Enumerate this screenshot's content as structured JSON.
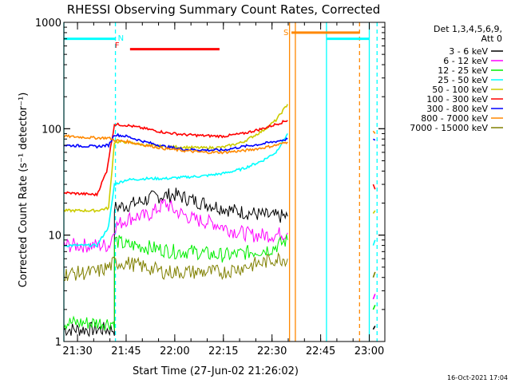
{
  "chart_data": {
    "type": "line",
    "title": "RHESSI Observing Summary Count Rates, Corrected",
    "xlabel": "Start Time (27-Jun-02 21:26:02)",
    "ylabel": "Corrected Count Rate (s⁻¹ detector⁻¹)",
    "yscale": "log",
    "ylim": [
      1,
      1000
    ],
    "xlim_minutes": [
      21.43,
      23.08
    ],
    "x_unit": "hours (UT, decimal)",
    "y_ticks": [
      {
        "value": 1,
        "label": "1"
      },
      {
        "value": 10,
        "label": "10"
      },
      {
        "value": 100,
        "label": "100"
      },
      {
        "value": 1000,
        "label": "1000"
      }
    ],
    "x_ticks": [
      {
        "value": 21.5,
        "label": "21:30"
      },
      {
        "value": 21.75,
        "label": "21:45"
      },
      {
        "value": 22.0,
        "label": "22:00"
      },
      {
        "value": 22.25,
        "label": "22:15"
      },
      {
        "value": 22.5,
        "label": "22:30"
      },
      {
        "value": 22.75,
        "label": "22:45"
      },
      {
        "value": 23.0,
        "label": "23:00"
      }
    ],
    "legend_title": [
      "Det 1,3,4,5,6,9,",
      "Att 0"
    ],
    "series": [
      {
        "name": "3 - 6 keV",
        "color": "#000000",
        "points": [
          [
            21.43,
            1.3
          ],
          [
            21.69,
            1.3
          ],
          [
            21.69,
            18
          ],
          [
            21.8,
            20
          ],
          [
            21.9,
            23
          ],
          [
            22.0,
            24
          ],
          [
            22.1,
            21
          ],
          [
            22.2,
            19
          ],
          [
            22.3,
            17
          ],
          [
            22.4,
            16
          ],
          [
            22.5,
            15
          ],
          [
            22.58,
            15
          ]
        ],
        "tail": [
          [
            23.02,
            1.3
          ],
          [
            23.03,
            1.4
          ]
        ]
      },
      {
        "name": "6 - 12 keV",
        "color": "#ff00ff",
        "points": [
          [
            21.43,
            8
          ],
          [
            21.66,
            8
          ],
          [
            21.67,
            8.5
          ],
          [
            21.69,
            12
          ],
          [
            21.75,
            14
          ],
          [
            21.8,
            15
          ],
          [
            21.85,
            15
          ],
          [
            21.9,
            17
          ],
          [
            21.95,
            20
          ],
          [
            22.0,
            17
          ],
          [
            22.1,
            14
          ],
          [
            22.2,
            13
          ],
          [
            22.3,
            11
          ],
          [
            22.4,
            10
          ],
          [
            22.5,
            10
          ],
          [
            22.58,
            10.5
          ]
        ],
        "tail": [
          [
            23.02,
            2.5
          ],
          [
            23.03,
            2.8
          ]
        ]
      },
      {
        "name": "12 - 25 keV",
        "color": "#00ee00",
        "points": [
          [
            21.43,
            1.5
          ],
          [
            21.69,
            1.5
          ],
          [
            21.69,
            9
          ],
          [
            21.75,
            8
          ],
          [
            21.8,
            8
          ],
          [
            21.9,
            7.5
          ],
          [
            22.0,
            7
          ],
          [
            22.1,
            7
          ],
          [
            22.2,
            6.5
          ],
          [
            22.3,
            6.5
          ],
          [
            22.4,
            7
          ],
          [
            22.5,
            7.5
          ],
          [
            22.58,
            9
          ]
        ],
        "tail": [
          [
            23.02,
            2
          ],
          [
            23.03,
            2.2
          ]
        ]
      },
      {
        "name": "25 - 50 keV",
        "color": "#00ffff",
        "points": [
          [
            21.43,
            8
          ],
          [
            21.6,
            8
          ],
          [
            21.66,
            12
          ],
          [
            21.69,
            30
          ],
          [
            21.75,
            33
          ],
          [
            21.85,
            34
          ],
          [
            21.95,
            34
          ],
          [
            22.05,
            35
          ],
          [
            22.15,
            36
          ],
          [
            22.25,
            38
          ],
          [
            22.35,
            42
          ],
          [
            22.45,
            50
          ],
          [
            22.52,
            60
          ],
          [
            22.58,
            90
          ]
        ],
        "tail": [
          [
            23.02,
            8
          ],
          [
            23.03,
            9
          ]
        ]
      },
      {
        "name": "50 - 100 keV",
        "color": "#cccc00",
        "points": [
          [
            21.43,
            17
          ],
          [
            21.6,
            17
          ],
          [
            21.66,
            18
          ],
          [
            21.69,
            75
          ],
          [
            21.75,
            75
          ],
          [
            21.85,
            70
          ],
          [
            21.95,
            68
          ],
          [
            22.05,
            67
          ],
          [
            22.15,
            66
          ],
          [
            22.25,
            67
          ],
          [
            22.35,
            75
          ],
          [
            22.45,
            95
          ],
          [
            22.52,
            120
          ],
          [
            22.58,
            170
          ]
        ],
        "tail": [
          [
            23.02,
            16
          ],
          [
            23.03,
            17
          ]
        ]
      },
      {
        "name": "100 - 300 keV",
        "color": "#ff0000",
        "points": [
          [
            21.43,
            25
          ],
          [
            21.6,
            24
          ],
          [
            21.65,
            40
          ],
          [
            21.69,
            110
          ],
          [
            21.75,
            108
          ],
          [
            21.85,
            100
          ],
          [
            21.95,
            92
          ],
          [
            22.05,
            88
          ],
          [
            22.15,
            86
          ],
          [
            22.25,
            85
          ],
          [
            22.35,
            90
          ],
          [
            22.45,
            100
          ],
          [
            22.52,
            110
          ],
          [
            22.58,
            120
          ]
        ],
        "tail": [
          [
            23.02,
            30
          ],
          [
            23.03,
            27
          ]
        ]
      },
      {
        "name": "300 - 800 keV",
        "color": "#0000ff",
        "points": [
          [
            21.43,
            70
          ],
          [
            21.6,
            68
          ],
          [
            21.66,
            70
          ],
          [
            21.69,
            88
          ],
          [
            21.75,
            85
          ],
          [
            21.85,
            75
          ],
          [
            21.95,
            68
          ],
          [
            22.05,
            64
          ],
          [
            22.15,
            63
          ],
          [
            22.25,
            63
          ],
          [
            22.35,
            68
          ],
          [
            22.45,
            72
          ],
          [
            22.52,
            76
          ],
          [
            22.58,
            80
          ]
        ],
        "tail": [
          [
            23.02,
            80
          ],
          [
            23.03,
            78
          ]
        ]
      },
      {
        "name": "800 - 7000 keV",
        "color": "#ff8800",
        "points": [
          [
            21.43,
            85
          ],
          [
            21.6,
            82
          ],
          [
            21.66,
            82
          ],
          [
            21.69,
            78
          ],
          [
            21.75,
            76
          ],
          [
            21.85,
            70
          ],
          [
            21.95,
            65
          ],
          [
            22.05,
            62
          ],
          [
            22.15,
            60
          ],
          [
            22.25,
            60
          ],
          [
            22.35,
            62
          ],
          [
            22.45,
            66
          ],
          [
            22.52,
            70
          ],
          [
            22.58,
            75
          ]
        ],
        "tail": [
          [
            23.02,
            95
          ],
          [
            23.03,
            90
          ]
        ]
      },
      {
        "name": "7000 - 15000 keV",
        "color": "#808000",
        "points": [
          [
            21.43,
            4.3
          ],
          [
            21.6,
            4.5
          ],
          [
            21.66,
            5
          ],
          [
            21.69,
            5.5
          ],
          [
            21.75,
            5.5
          ],
          [
            21.85,
            5
          ],
          [
            21.95,
            4.5
          ],
          [
            22.05,
            4.5
          ],
          [
            22.15,
            4.5
          ],
          [
            22.25,
            4.5
          ],
          [
            22.35,
            5
          ],
          [
            22.45,
            5.5
          ],
          [
            22.52,
            6
          ],
          [
            22.58,
            6
          ]
        ],
        "tail": [
          [
            23.02,
            4
          ],
          [
            23.03,
            4.5
          ]
        ]
      }
    ],
    "annotations": [
      {
        "text": "N",
        "color": "#00ffff",
        "x": 21.695
      },
      {
        "text": "F",
        "color": "#ff0000",
        "x": 21.7
      },
      {
        "text": "S",
        "color": "#ff8800",
        "x": 22.6
      }
    ],
    "state_bars": [
      {
        "name": "night",
        "color": "#00ffff",
        "x0": 21.43,
        "x1": 21.695,
        "y": 700
      },
      {
        "name": "night",
        "color": "#00ffff",
        "x0": 22.78,
        "x1": 23.0,
        "y": 700
      },
      {
        "name": "flare",
        "color": "#ff0000",
        "x0": 21.77,
        "x1": 22.23,
        "y": 560
      },
      {
        "name": "saa",
        "color": "#ff8800",
        "x0": 22.6,
        "x1": 22.95,
        "y": 800
      }
    ],
    "vlines": [
      {
        "color": "#00ffff",
        "x": 21.43,
        "dash": false
      },
      {
        "color": "#00ffff",
        "x": 21.695,
        "dash": true
      },
      {
        "color": "#ff8800",
        "x": 22.59,
        "dash": false
      },
      {
        "color": "#ff8800",
        "x": 22.62,
        "dash": false
      },
      {
        "color": "#00ffff",
        "x": 22.78,
        "dash": false
      },
      {
        "color": "#ff8800",
        "x": 22.95,
        "dash": true
      },
      {
        "color": "#00ffff",
        "x": 23.0,
        "dash": false
      },
      {
        "color": "#00ffff",
        "x": 23.04,
        "dash": true
      }
    ]
  },
  "footer": {
    "timestamp": "16-Oct-2021 17:04"
  }
}
